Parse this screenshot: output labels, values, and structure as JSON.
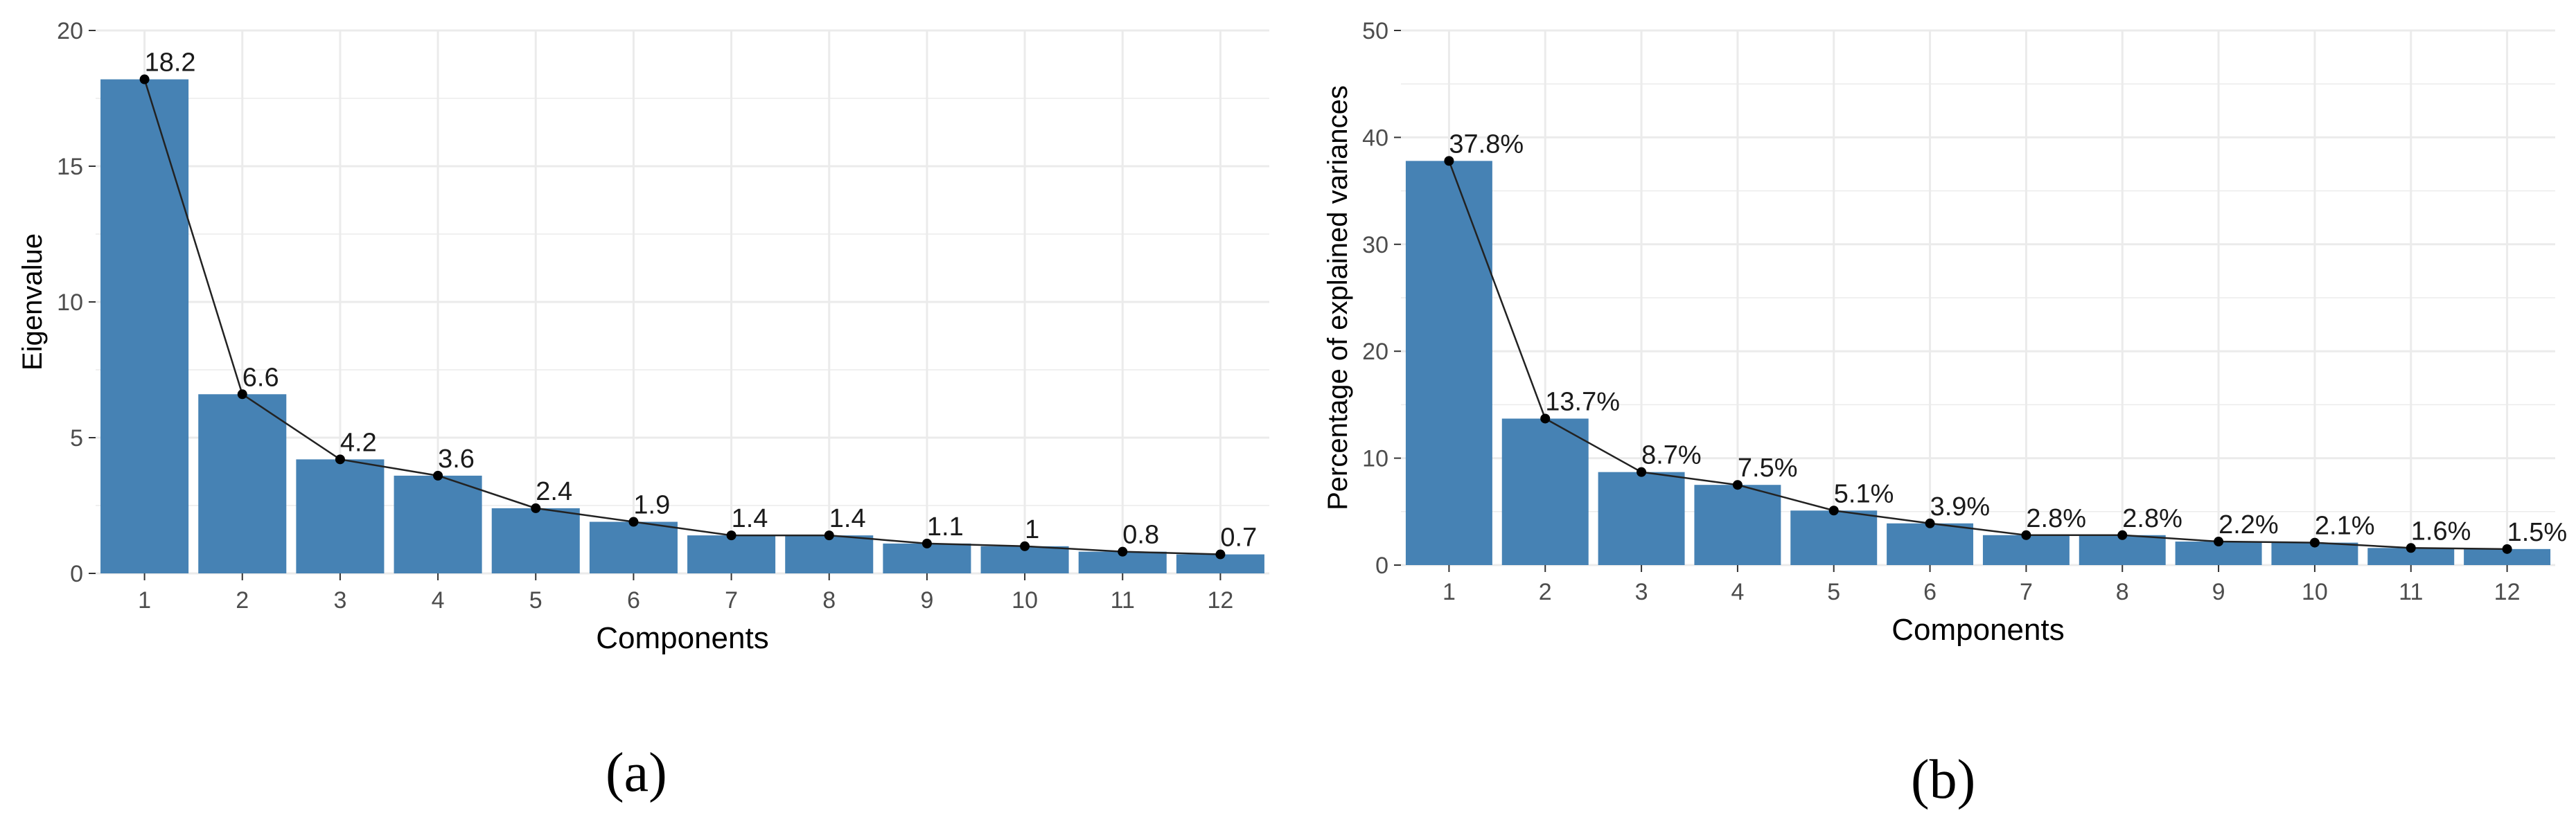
{
  "colors": {
    "bar": "#4682B4",
    "panel_background": "#FFFFFF",
    "grid": "#EBEBEB",
    "line": "#222222",
    "point": "#000000",
    "tick_text": "#4D4D4D",
    "label_text": "#1A1A1A"
  },
  "captions": {
    "a": "(a)",
    "b": "(b)"
  },
  "chart_data": [
    {
      "type": "bar",
      "overlay": "line with points",
      "xlabel": "Components",
      "ylabel": "Eigenvalue",
      "categories": [
        "1",
        "2",
        "3",
        "4",
        "5",
        "6",
        "7",
        "8",
        "9",
        "10",
        "11",
        "12"
      ],
      "values": [
        18.2,
        6.6,
        4.2,
        3.6,
        2.4,
        1.9,
        1.4,
        1.4,
        1.1,
        1.0,
        0.8,
        0.7
      ],
      "data_labels": [
        "18.2",
        "6.6",
        "4.2",
        "3.6",
        "2.4",
        "1.9",
        "1.4",
        "1.4",
        "1.1",
        "1",
        "0.8",
        "0.7"
      ],
      "ylim": [
        0,
        20
      ],
      "yticks": [
        0,
        5,
        10,
        15,
        20
      ],
      "grid": true,
      "legend": "none"
    },
    {
      "type": "bar",
      "overlay": "line with points",
      "xlabel": "Components",
      "ylabel": "Percentage of explained variances",
      "categories": [
        "1",
        "2",
        "3",
        "4",
        "5",
        "6",
        "7",
        "8",
        "9",
        "10",
        "11",
        "12"
      ],
      "values": [
        37.8,
        13.7,
        8.7,
        7.5,
        5.1,
        3.9,
        2.8,
        2.8,
        2.2,
        2.1,
        1.6,
        1.5
      ],
      "data_labels": [
        "37.8%",
        "13.7%",
        "8.7%",
        "7.5%",
        "5.1%",
        "3.9%",
        "2.8%",
        "2.8%",
        "2.2%",
        "2.1%",
        "1.6%",
        "1.5%"
      ],
      "ylim": [
        0,
        50
      ],
      "yticks": [
        0,
        10,
        20,
        30,
        40,
        50
      ],
      "grid": true,
      "legend": "none"
    }
  ]
}
